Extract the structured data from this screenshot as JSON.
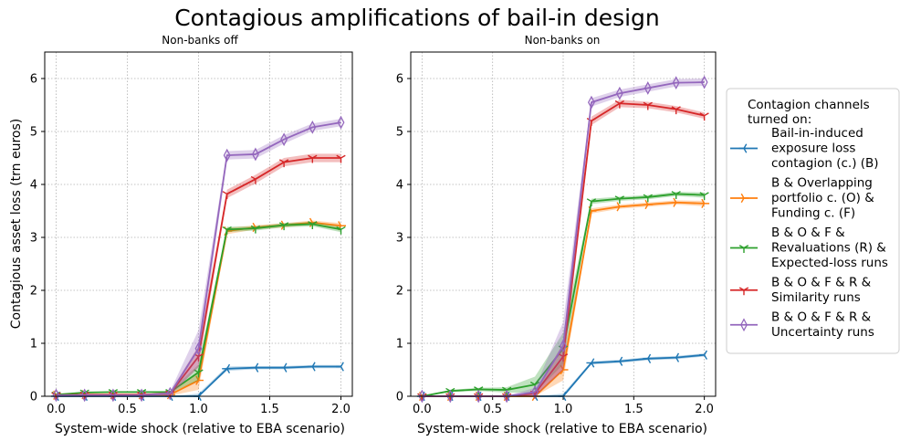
{
  "figure_title": "Contagious amplifications of bail-in design",
  "legend": {
    "title_lines": [
      "Contagion channels",
      "turned on:"
    ],
    "entries": [
      {
        "series": "B",
        "lines": [
          "Bail-in-induced",
          "exposure loss",
          "contagion (c.) (B)"
        ]
      },
      {
        "series": "BOF",
        "lines": [
          "B & Overlapping",
          "portfolio c. (O) &",
          "Funding c. (F)"
        ]
      },
      {
        "series": "BOFR_EL",
        "lines": [
          "B & O & F &",
          "Revaluations (R) &",
          "Expected-loss runs"
        ]
      },
      {
        "series": "BOFR_S",
        "lines": [
          "B & O & F & R &",
          "Similarity runs"
        ]
      },
      {
        "series": "BOFR_U",
        "lines": [
          "B & O & F & R &",
          "Uncertainty runs"
        ]
      }
    ]
  },
  "chart_data": [
    {
      "type": "line",
      "title": "Non-banks off",
      "xlabel": "System-wide shock (relative to EBA scenario)",
      "ylabel": "Contagious asset loss (trn euros)",
      "xlim": [
        -0.08,
        2.08
      ],
      "ylim": [
        0,
        6.5
      ],
      "xticks": [
        "0.0",
        "0.5",
        "1.0",
        "1.5",
        "2.0"
      ],
      "yticks": [
        "0",
        "1",
        "2",
        "3",
        "4",
        "5",
        "6"
      ],
      "grid": true,
      "x": [
        0.0,
        0.2,
        0.4,
        0.6,
        0.8,
        1.0,
        1.2,
        1.4,
        1.6,
        1.8,
        2.0
      ],
      "series": [
        {
          "key": "B",
          "name": "Bail-in-induced exposure loss contagion (c.) (B)",
          "color": "#1f77b4",
          "marker": "tri_left",
          "values": [
            0,
            0,
            0,
            0,
            0,
            0,
            0.52,
            0.54,
            0.54,
            0.56,
            0.56
          ],
          "band": [
            0,
            0,
            0,
            0,
            0,
            0.05,
            0.04,
            0.03,
            0.03,
            0.03,
            0.03
          ]
        },
        {
          "key": "BOF",
          "name": "B & Overlapping portfolio c. (O) & Funding c. (F)",
          "color": "#ff7f0e",
          "marker": "tri_right",
          "values": [
            0.02,
            0.03,
            0.03,
            0.03,
            0.03,
            0.3,
            3.12,
            3.19,
            3.23,
            3.28,
            3.22
          ],
          "band": [
            0.01,
            0.01,
            0.01,
            0.01,
            0.02,
            0.18,
            0.06,
            0.04,
            0.04,
            0.04,
            0.05
          ]
        },
        {
          "key": "BOFR_EL",
          "name": "B & O & F & Revaluations (R) & Expected-loss runs",
          "color": "#2ca02c",
          "marker": "tri_down",
          "values": [
            0.03,
            0.07,
            0.08,
            0.08,
            0.08,
            0.45,
            3.15,
            3.17,
            3.23,
            3.25,
            3.15
          ],
          "band": [
            0.01,
            0.01,
            0.01,
            0.01,
            0.02,
            0.15,
            0.05,
            0.04,
            0.04,
            0.04,
            0.05
          ]
        },
        {
          "key": "BOFR_S",
          "name": "B & O & F & R & Similarity runs",
          "color": "#d62728",
          "marker": "tri_down",
          "values": [
            0.02,
            0.03,
            0.03,
            0.03,
            0.05,
            0.75,
            3.82,
            4.1,
            4.42,
            4.5,
            4.5
          ],
          "band": [
            0.01,
            0.01,
            0.01,
            0.01,
            0.03,
            0.2,
            0.08,
            0.08,
            0.08,
            0.08,
            0.08
          ]
        },
        {
          "key": "BOFR_U",
          "name": "B & O & F & R & Uncertainty runs",
          "color": "#9467bd",
          "marker": "thin_diamond",
          "values": [
            0.02,
            0.02,
            0.02,
            0.02,
            0.05,
            0.9,
            4.55,
            4.57,
            4.85,
            5.08,
            5.17
          ],
          "band": [
            0.01,
            0.01,
            0.01,
            0.01,
            0.04,
            0.35,
            0.08,
            0.08,
            0.08,
            0.07,
            0.07
          ]
        }
      ]
    },
    {
      "type": "line",
      "title": "Non-banks on",
      "xlabel": "System-wide shock (relative to EBA scenario)",
      "ylabel": "",
      "xlim": [
        -0.08,
        2.08
      ],
      "ylim": [
        0,
        6.5
      ],
      "xticks": [
        "0.0",
        "0.5",
        "1.0",
        "1.5",
        "2.0"
      ],
      "yticks": [
        "0",
        "1",
        "2",
        "3",
        "4",
        "5",
        "6"
      ],
      "grid": true,
      "x": [
        0.0,
        0.2,
        0.4,
        0.6,
        0.8,
        1.0,
        1.2,
        1.4,
        1.6,
        1.8,
        2.0
      ],
      "series": [
        {
          "key": "B",
          "name": "Bail-in-induced exposure loss contagion (c.) (B)",
          "color": "#1f77b4",
          "marker": "tri_left",
          "values": [
            0,
            0,
            0,
            0,
            0,
            0,
            0.63,
            0.66,
            0.71,
            0.73,
            0.78
          ],
          "band": [
            0,
            0,
            0,
            0,
            0,
            0.05,
            0.03,
            0.03,
            0.03,
            0.03,
            0.03
          ]
        },
        {
          "key": "BOF",
          "name": "B & Overlapping portfolio c. (O) & Funding c. (F)",
          "color": "#ff7f0e",
          "marker": "tri_right",
          "values": [
            0,
            0,
            0,
            0,
            0,
            0.5,
            3.5,
            3.58,
            3.62,
            3.66,
            3.64
          ],
          "band": [
            0,
            0,
            0,
            0,
            0.02,
            0.2,
            0.05,
            0.04,
            0.04,
            0.04,
            0.05
          ]
        },
        {
          "key": "BOFR_EL",
          "name": "B & O & F & Revaluations (R) & Expected-loss runs",
          "color": "#2ca02c",
          "marker": "tri_down",
          "values": [
            0,
            0.1,
            0.13,
            0.12,
            0.22,
            0.9,
            3.68,
            3.73,
            3.76,
            3.82,
            3.8
          ],
          "band": [
            0.01,
            0.02,
            0.03,
            0.05,
            0.15,
            0.3,
            0.05,
            0.04,
            0.04,
            0.04,
            0.05
          ]
        },
        {
          "key": "BOFR_S",
          "name": "B & O & F & R & Similarity runs",
          "color": "#d62728",
          "marker": "tri_down",
          "values": [
            0,
            0,
            0,
            0,
            0.05,
            0.75,
            5.2,
            5.53,
            5.5,
            5.42,
            5.3
          ],
          "band": [
            0.01,
            0.01,
            0.01,
            0.01,
            0.05,
            0.25,
            0.08,
            0.07,
            0.06,
            0.06,
            0.06
          ]
        },
        {
          "key": "BOFR_U",
          "name": "B & O & F & R & Uncertainty runs",
          "color": "#9467bd",
          "marker": "thin_diamond",
          "values": [
            0,
            0,
            0,
            0,
            0.08,
            0.95,
            5.55,
            5.72,
            5.82,
            5.92,
            5.93
          ],
          "band": [
            0.01,
            0.01,
            0.01,
            0.01,
            0.08,
            0.45,
            0.08,
            0.07,
            0.07,
            0.07,
            0.07
          ]
        }
      ]
    }
  ]
}
